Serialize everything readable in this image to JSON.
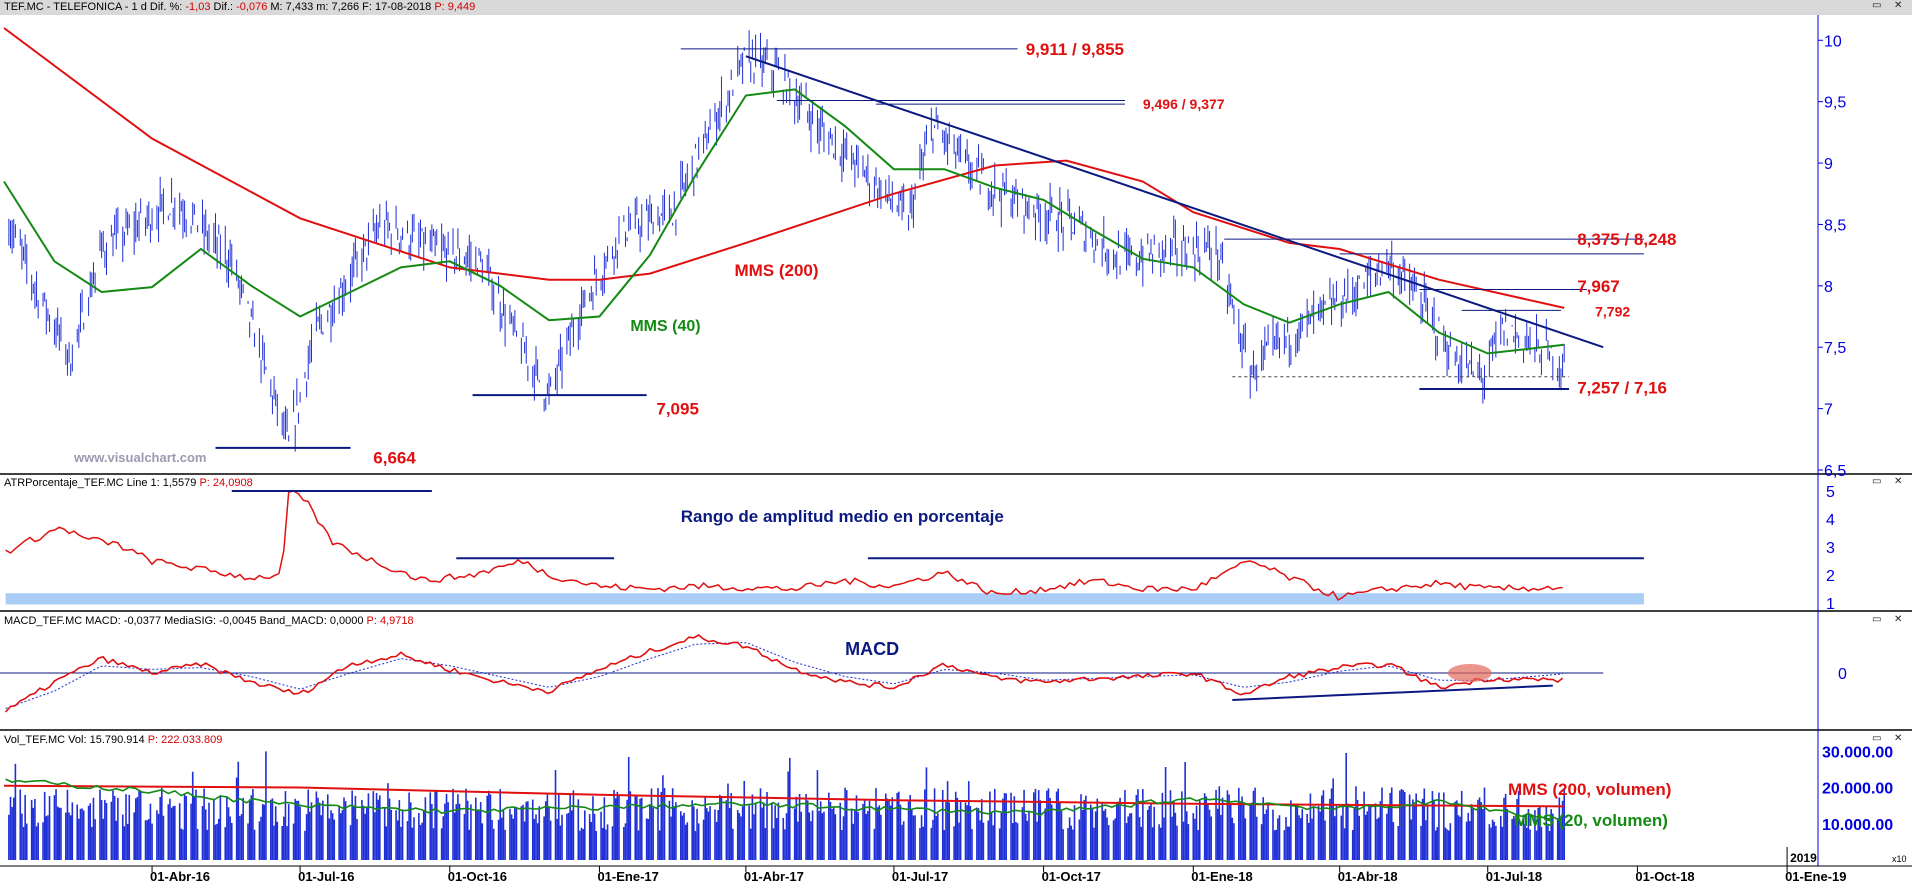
{
  "panels": {
    "price": {
      "title_symbol": "TEF.MC - TELEFONICA - 1 d",
      "title_dif_pct_label": "Dif. %:",
      "title_dif_pct": "-1,03",
      "title_dif_label": "Dif.:",
      "title_dif": "-0,076",
      "title_max": "M: 7,433",
      "title_min": "m: 7,266",
      "title_date": "F: 17-08-2018",
      "title_price": "P: 9,449",
      "watermark": "www.visualchart.com"
    },
    "atr": {
      "title": "ATRPorcentaje_TEF.MC  Line 1: 1,5579",
      "title_price": "P: 24,0908",
      "annotation": "Rango de amplitud medio en porcentaje"
    },
    "macd": {
      "title": "MACD_TEF.MC  MACD: -0,0377  MediaSIG: -0,0045  Band_MACD: 0,0000",
      "title_price": "P: 4,9718",
      "annotation": "MACD"
    },
    "volume": {
      "title": "Vol_TEF.MC  Vol: 15.790.914",
      "title_price": "P: 222.033.809"
    }
  },
  "colors": {
    "price_bars": "#1f2fd6",
    "mms200": "#e01010",
    "mms40": "#138a13",
    "trendline": "#0a1a80",
    "annotation_red": "#e01010",
    "annotation_green": "#138a13",
    "annotation_blue": "#0a1a80",
    "atr_band": "#a9cdf5",
    "axis_text": "#0000e0"
  },
  "chart_data": [
    {
      "type": "line",
      "title": "",
      "panel": "price",
      "ylim": [
        6.5,
        10.1
      ],
      "y_ticks": [
        "10",
        "9,5",
        "9",
        "8,5",
        "8",
        "7,5",
        "7",
        "6,5"
      ],
      "x_ticks": [
        "01-Abr-16",
        "01-Jul-16",
        "01-Oct-16",
        "01-Ene-17",
        "01-Abr-17",
        "01-Jul-17",
        "01-Oct-17",
        "01-Ene-18",
        "01-Abr-18",
        "01-Jul-18",
        "01-Oct-18",
        "01-Ene-19"
      ],
      "x_axis_marker": "2019",
      "series": [
        {
          "name": "MMS (200)",
          "points": [
            [
              "2016-01-01",
              10.1
            ],
            [
              "2016-04-01",
              9.2
            ],
            [
              "2016-07-01",
              8.55
            ],
            [
              "2016-10-01",
              8.15
            ],
            [
              "2016-12-01",
              8.05
            ],
            [
              "2017-01-01",
              8.05
            ],
            [
              "2017-02-01",
              8.1
            ],
            [
              "2017-04-01",
              8.35
            ],
            [
              "2017-07-01",
              8.75
            ],
            [
              "2017-09-01",
              8.98
            ],
            [
              "2017-10-15",
              9.02
            ],
            [
              "2017-12-01",
              8.85
            ],
            [
              "2018-01-01",
              8.6
            ],
            [
              "2018-03-01",
              8.35
            ],
            [
              "2018-04-01",
              8.3
            ],
            [
              "2018-06-01",
              8.05
            ],
            [
              "2018-08-17",
              7.82
            ]
          ]
        },
        {
          "name": "MMS (40)",
          "points": [
            [
              "2016-01-01",
              8.85
            ],
            [
              "2016-02-01",
              8.2
            ],
            [
              "2016-03-01",
              7.95
            ],
            [
              "2016-04-01",
              7.99
            ],
            [
              "2016-05-01",
              8.3
            ],
            [
              "2016-06-01",
              8.0
            ],
            [
              "2016-07-01",
              7.75
            ],
            [
              "2016-08-01",
              7.95
            ],
            [
              "2016-09-01",
              8.15
            ],
            [
              "2016-10-01",
              8.2
            ],
            [
              "2016-11-01",
              8.0
            ],
            [
              "2016-12-01",
              7.72
            ],
            [
              "2017-01-01",
              7.75
            ],
            [
              "2017-02-01",
              8.25
            ],
            [
              "2017-03-01",
              8.9
            ],
            [
              "2017-04-01",
              9.55
            ],
            [
              "2017-05-01",
              9.6
            ],
            [
              "2017-06-01",
              9.3
            ],
            [
              "2017-07-01",
              8.95
            ],
            [
              "2017-08-01",
              8.95
            ],
            [
              "2017-09-01",
              8.8
            ],
            [
              "2017-10-01",
              8.7
            ],
            [
              "2017-11-01",
              8.45
            ],
            [
              "2017-12-01",
              8.22
            ],
            [
              "2018-01-01",
              8.15
            ],
            [
              "2018-02-01",
              7.85
            ],
            [
              "2018-03-01",
              7.7
            ],
            [
              "2018-04-01",
              7.85
            ],
            [
              "2018-05-01",
              7.95
            ],
            [
              "2018-06-01",
              7.62
            ],
            [
              "2018-07-01",
              7.45
            ],
            [
              "2018-08-17",
              7.52
            ]
          ]
        }
      ],
      "price_range_daily": {
        "low": 6.664,
        "high": 9.911,
        "first_date": "2016-01-01",
        "last_date": "2018-08-17"
      },
      "annotations": [
        {
          "text": "9,911 / 9,855"
        },
        {
          "text": "9,496 / 9,377"
        },
        {
          "text": "8,375 / 8,248"
        },
        {
          "text": "7,967"
        },
        {
          "text": "7,792"
        },
        {
          "text": "7,257 / 7,16"
        },
        {
          "text": "7,095"
        },
        {
          "text": "6,664"
        },
        {
          "text": "MMS (200)"
        },
        {
          "text": "MMS (40)"
        }
      ]
    },
    {
      "type": "line",
      "title": "Rango de amplitud medio en porcentaje",
      "panel": "atr",
      "ylim": [
        1,
        5
      ],
      "y_ticks": [
        "5",
        "4",
        "3",
        "2",
        "1"
      ],
      "series": [
        {
          "name": "Line 1",
          "points": [
            [
              "2016-01-01",
              2.8
            ],
            [
              "2016-01-20",
              3.3
            ],
            [
              "2016-02-05",
              3.7
            ],
            [
              "2016-02-20",
              3.3
            ],
            [
              "2016-03-10",
              3.1
            ],
            [
              "2016-04-01",
              2.5
            ],
            [
              "2016-05-01",
              2.2
            ],
            [
              "2016-06-01",
              1.9
            ],
            [
              "2016-06-20",
              2.0
            ],
            [
              "2016-06-24",
              5.0
            ],
            [
              "2016-07-05",
              4.6
            ],
            [
              "2016-07-20",
              3.2
            ],
            [
              "2016-08-15",
              2.5
            ],
            [
              "2016-09-15",
              1.8
            ],
            [
              "2016-10-15",
              2.0
            ],
            [
              "2016-11-15",
              2.5
            ],
            [
              "2016-12-01",
              2.0
            ],
            [
              "2017-01-01",
              1.6
            ],
            [
              "2017-02-01",
              1.5
            ],
            [
              "2017-03-01",
              1.6
            ],
            [
              "2017-05-01",
              1.5
            ],
            [
              "2017-06-01",
              1.8
            ],
            [
              "2017-07-01",
              1.6
            ],
            [
              "2017-08-01",
              2.1
            ],
            [
              "2017-09-01",
              1.3
            ],
            [
              "2017-10-01",
              1.5
            ],
            [
              "2017-11-01",
              1.8
            ],
            [
              "2017-12-01",
              1.5
            ],
            [
              "2018-01-01",
              1.5
            ],
            [
              "2018-02-05",
              2.5
            ],
            [
              "2018-03-01",
              1.9
            ],
            [
              "2018-04-01",
              1.2
            ],
            [
              "2018-05-01",
              1.5
            ],
            [
              "2018-06-01",
              1.7
            ],
            [
              "2018-07-01",
              1.5
            ],
            [
              "2018-08-17",
              1.56
            ]
          ]
        }
      ]
    },
    {
      "type": "line",
      "title": "MACD",
      "panel": "macd",
      "ylim": [
        -0.25,
        0.25
      ],
      "y_ticks": [
        "0"
      ],
      "series": [
        {
          "name": "MACD",
          "points": [
            [
              "2016-01-01",
              -0.22
            ],
            [
              "2016-02-01",
              -0.05
            ],
            [
              "2016-03-01",
              0.08
            ],
            [
              "2016-04-01",
              0.0
            ],
            [
              "2016-05-01",
              0.05
            ],
            [
              "2016-06-01",
              -0.05
            ],
            [
              "2016-07-01",
              -0.12
            ],
            [
              "2016-08-01",
              0.05
            ],
            [
              "2016-09-01",
              0.1
            ],
            [
              "2016-10-01",
              0.02
            ],
            [
              "2016-11-01",
              -0.05
            ],
            [
              "2016-12-01",
              -0.1
            ],
            [
              "2017-01-01",
              0.02
            ],
            [
              "2017-02-01",
              0.12
            ],
            [
              "2017-03-01",
              0.2
            ],
            [
              "2017-04-01",
              0.15
            ],
            [
              "2017-05-01",
              0.02
            ],
            [
              "2017-06-01",
              -0.05
            ],
            [
              "2017-07-01",
              -0.08
            ],
            [
              "2017-08-01",
              0.05
            ],
            [
              "2017-09-01",
              -0.03
            ],
            [
              "2017-10-01",
              -0.05
            ],
            [
              "2017-11-01",
              -0.03
            ],
            [
              "2017-12-01",
              -0.02
            ],
            [
              "2018-01-01",
              0.0
            ],
            [
              "2018-02-01",
              -0.12
            ],
            [
              "2018-03-01",
              -0.02
            ],
            [
              "2018-04-01",
              0.03
            ],
            [
              "2018-05-01",
              0.05
            ],
            [
              "2018-06-01",
              -0.08
            ],
            [
              "2018-07-01",
              -0.03
            ],
            [
              "2018-08-17",
              -0.04
            ]
          ]
        },
        {
          "name": "MediaSIG",
          "points": [
            [
              "2016-01-01",
              -0.2
            ],
            [
              "2016-02-01",
              -0.1
            ],
            [
              "2016-03-01",
              0.04
            ],
            [
              "2016-04-01",
              0.02
            ],
            [
              "2016-05-01",
              0.03
            ],
            [
              "2016-06-01",
              -0.02
            ],
            [
              "2016-07-01",
              -0.09
            ],
            [
              "2016-08-01",
              0.0
            ],
            [
              "2016-09-01",
              0.08
            ],
            [
              "2016-10-01",
              0.04
            ],
            [
              "2016-11-01",
              -0.02
            ],
            [
              "2016-12-01",
              -0.08
            ],
            [
              "2017-01-01",
              -0.02
            ],
            [
              "2017-02-01",
              0.08
            ],
            [
              "2017-03-01",
              0.16
            ],
            [
              "2017-04-01",
              0.17
            ],
            [
              "2017-05-01",
              0.06
            ],
            [
              "2017-06-01",
              -0.02
            ],
            [
              "2017-07-01",
              -0.06
            ],
            [
              "2017-08-01",
              0.02
            ],
            [
              "2017-09-01",
              0.0
            ],
            [
              "2017-10-01",
              -0.04
            ],
            [
              "2017-11-01",
              -0.03
            ],
            [
              "2017-12-01",
              -0.02
            ],
            [
              "2018-01-01",
              -0.01
            ],
            [
              "2018-02-01",
              -0.08
            ],
            [
              "2018-03-01",
              -0.05
            ],
            [
              "2018-04-01",
              0.01
            ],
            [
              "2018-05-01",
              0.04
            ],
            [
              "2018-06-01",
              -0.04
            ],
            [
              "2018-07-01",
              -0.04
            ],
            [
              "2018-08-17",
              -0.0045
            ]
          ]
        }
      ]
    },
    {
      "type": "bar",
      "title": "",
      "panel": "volume",
      "ylim": [
        0,
        32000000
      ],
      "y_ticks": [
        "30.000.00",
        "20.000.00",
        "10.000.00"
      ],
      "y_axis_marker": "x10",
      "series": [
        {
          "name": "Vol",
          "typical_range": [
            8000000,
            20000000
          ],
          "last": 15790914
        },
        {
          "name": "MMS (200, volumen)",
          "points": [
            [
              "2016-01-01",
              20500000
            ],
            [
              "2016-07-01",
              20000000
            ],
            [
              "2017-01-01",
              18000000
            ],
            [
              "2017-07-01",
              16500000
            ],
            [
              "2018-01-01",
              15500000
            ],
            [
              "2018-08-17",
              14800000
            ]
          ]
        },
        {
          "name": "MMS (20, volumen)",
          "points": [
            [
              "2016-01-01",
              22000000
            ],
            [
              "2016-04-01",
              19000000
            ],
            [
              "2016-07-01",
              15000000
            ],
            [
              "2016-10-01",
              13500000
            ],
            [
              "2017-01-01",
              14500000
            ],
            [
              "2017-04-01",
              15500000
            ],
            [
              "2017-07-01",
              14000000
            ],
            [
              "2017-10-01",
              13000000
            ],
            [
              "2018-01-01",
              17000000
            ],
            [
              "2018-04-01",
              14000000
            ],
            [
              "2018-06-01",
              16000000
            ],
            [
              "2018-08-17",
              11000000
            ]
          ]
        }
      ],
      "annotations": [
        {
          "text": "MMS (200, volumen)"
        },
        {
          "text": "MMS (20, volumen)"
        }
      ]
    }
  ]
}
